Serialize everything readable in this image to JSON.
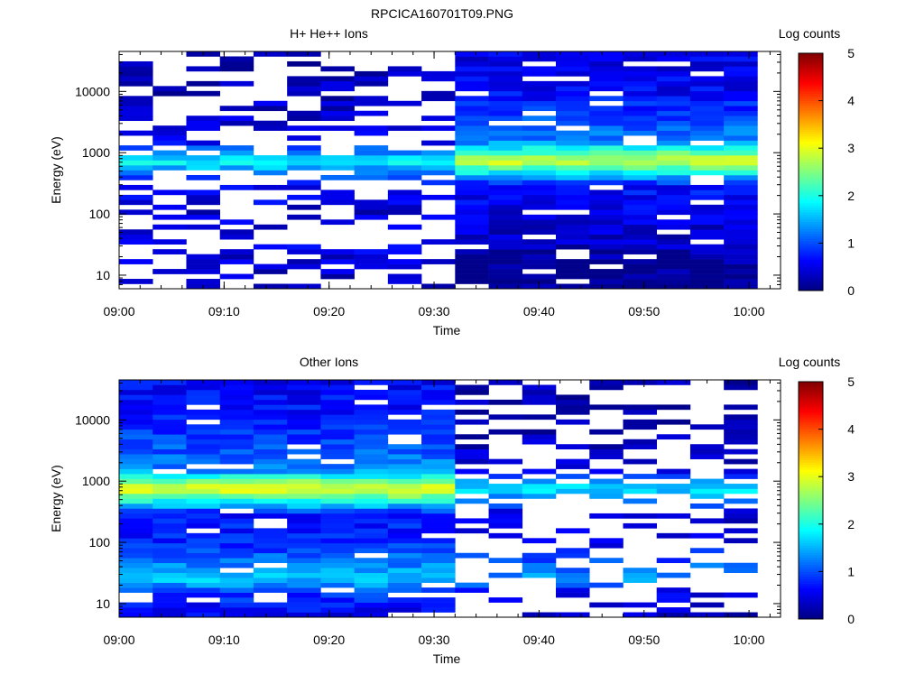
{
  "page_title": "RPCICA160701T09.PNG",
  "colorbar": {
    "label": "Log counts",
    "range": [
      0,
      5
    ],
    "ticks": [
      "0",
      "1",
      "2",
      "3",
      "4",
      "5"
    ]
  },
  "chart_data": [
    {
      "type": "heatmap",
      "title": "H+ He++ Ions",
      "xlabel": "Time",
      "ylabel": "Energy (eV)",
      "x_ticks": [
        "09:00",
        "09:10",
        "09:20",
        "09:30",
        "09:40",
        "09:50",
        "10:00"
      ],
      "y_ticks": [
        "10",
        "100",
        "1000",
        "10000"
      ],
      "y_scale": "log",
      "y_range_eV": [
        6,
        45000
      ],
      "x_range": [
        "09:00",
        "10:03"
      ],
      "columns": 19,
      "column_minutes": 3.2,
      "bins_per_column": 48,
      "z_label": "Log counts",
      "z_range": [
        0,
        5
      ],
      "profile": {
        "before_0932": [
          {
            "energy_eV": 6,
            "log_counts": 0.3
          },
          {
            "energy_eV": 15,
            "log_counts": 0.4
          },
          {
            "energy_eV": 30,
            "log_counts": 0.5
          },
          {
            "energy_eV": 100,
            "log_counts": 0.4
          },
          {
            "energy_eV": 300,
            "log_counts": 0.6
          },
          {
            "energy_eV": 750,
            "log_counts": 1.9
          },
          {
            "energy_eV": 1500,
            "log_counts": 0.5
          },
          {
            "energy_eV": 10000,
            "log_counts": 0.3
          },
          {
            "energy_eV": 45000,
            "log_counts": 0.2
          }
        ],
        "after_0932": [
          {
            "energy_eV": 6,
            "log_counts": 0.1
          },
          {
            "energy_eV": 15,
            "log_counts": 0.1
          },
          {
            "energy_eV": 30,
            "log_counts": 0.3
          },
          {
            "energy_eV": 100,
            "log_counts": 0.5
          },
          {
            "energy_eV": 300,
            "log_counts": 0.7
          },
          {
            "energy_eV": 750,
            "log_counts": 3.0
          },
          {
            "energy_eV": 1500,
            "log_counts": 1.3
          },
          {
            "energy_eV": 10000,
            "log_counts": 0.6
          },
          {
            "energy_eV": 45000,
            "log_counts": 0.5
          }
        ],
        "fill_before_0932": 0.42,
        "fill_after_0932": 0.9
      }
    },
    {
      "type": "heatmap",
      "title": "Other Ions",
      "xlabel": "Time",
      "ylabel": "Energy (eV)",
      "x_ticks": [
        "09:00",
        "09:10",
        "09:20",
        "09:30",
        "09:40",
        "09:50",
        "10:00"
      ],
      "y_ticks": [
        "10",
        "100",
        "1000",
        "10000"
      ],
      "y_scale": "log",
      "y_range_eV": [
        6,
        45000
      ],
      "x_range": [
        "09:00",
        "10:03"
      ],
      "columns": 19,
      "column_minutes": 3.2,
      "bins_per_column": 48,
      "z_label": "Log counts",
      "z_range": [
        0,
        5
      ],
      "profile": {
        "before_0932": [
          {
            "energy_eV": 6,
            "log_counts": 0.5
          },
          {
            "energy_eV": 15,
            "log_counts": 0.9
          },
          {
            "energy_eV": 25,
            "log_counts": 1.6
          },
          {
            "energy_eV": 100,
            "log_counts": 0.8
          },
          {
            "energy_eV": 300,
            "log_counts": 0.7
          },
          {
            "energy_eV": 750,
            "log_counts": 3.2
          },
          {
            "energy_eV": 1500,
            "log_counts": 1.3
          },
          {
            "energy_eV": 10000,
            "log_counts": 0.7
          },
          {
            "energy_eV": 45000,
            "log_counts": 0.6
          }
        ],
        "after_0932": [
          {
            "energy_eV": 6,
            "log_counts": 0.3
          },
          {
            "energy_eV": 15,
            "log_counts": 0.5
          },
          {
            "energy_eV": 25,
            "log_counts": 1.4
          },
          {
            "energy_eV": 100,
            "log_counts": 0.5
          },
          {
            "energy_eV": 300,
            "log_counts": 0.4
          },
          {
            "energy_eV": 750,
            "log_counts": 1.8
          },
          {
            "energy_eV": 1500,
            "log_counts": 0.4
          },
          {
            "energy_eV": 10000,
            "log_counts": 0.2
          },
          {
            "energy_eV": 45000,
            "log_counts": 0.2
          }
        ],
        "fill_before_0932": 0.9,
        "fill_after_0932": 0.4
      }
    }
  ]
}
